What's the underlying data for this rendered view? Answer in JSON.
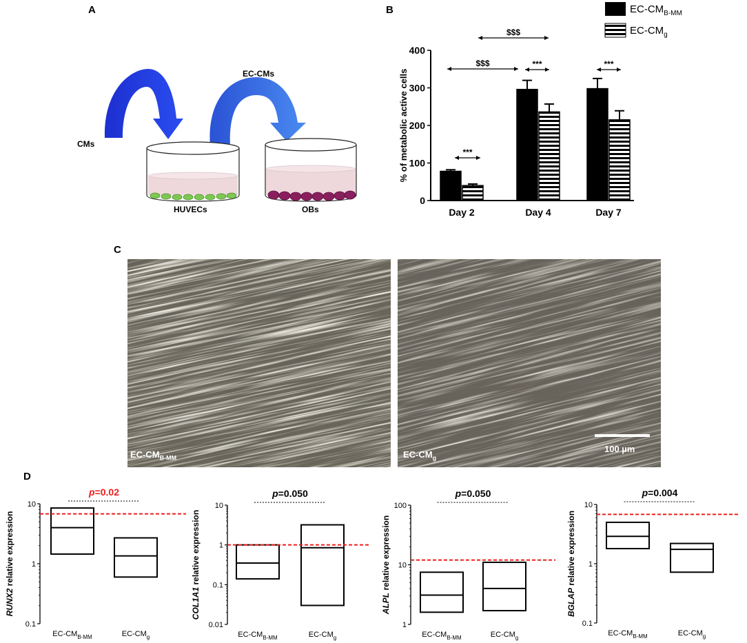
{
  "panel_labels": {
    "a": "A",
    "b": "B",
    "c": "C",
    "d": "D"
  },
  "panel_a": {
    "cms_label": "CMs",
    "ec_cms_label": "EC-CMs",
    "huvecs_label": "HUVECs",
    "obs_label": "OBs",
    "colors": {
      "arrow_dark": "#1a2fd6",
      "arrow_light": "#3b6fe8",
      "huvec_cells": "#7dc852",
      "ob_cells": "#8a1f5e",
      "medium": "#efd8dc"
    }
  },
  "panel_c": {
    "left_tag": "EC-CM",
    "left_tag_sub": "B-MM",
    "right_tag": "EC-CM",
    "right_tag_sub": "g",
    "scale_bar_label": "100 µm",
    "colors": {
      "micrograph_base": "#6b665a"
    }
  },
  "chart_data": [
    {
      "id": "B",
      "type": "bar",
      "ylabel": "% of metabolic active cells",
      "ylim": [
        0,
        400
      ],
      "yticks": [
        0,
        100,
        200,
        300,
        400
      ],
      "categories": [
        "Day 2",
        "Day 4",
        "Day 7"
      ],
      "legend_position": "top-right",
      "series": [
        {
          "name": "EC-CM",
          "name_sub": "B-MM",
          "fill": "solid-black",
          "values": [
            78,
            296,
            298
          ],
          "errors": [
            4,
            24,
            27
          ]
        },
        {
          "name": "EC-CM",
          "name_sub": "g",
          "fill": "horizontal-stripes",
          "values": [
            40,
            236,
            215
          ],
          "errors": [
            4,
            21,
            24
          ]
        }
      ],
      "annotations": [
        {
          "text": "***",
          "between": [
            "Day 2 EC-CMB-MM",
            "Day 2 EC-CMg"
          ]
        },
        {
          "text": "***",
          "between": [
            "Day 4 EC-CMB-MM",
            "Day 4 EC-CMg"
          ]
        },
        {
          "text": "***",
          "between": [
            "Day 7 EC-CMB-MM",
            "Day 7 EC-CMg"
          ]
        },
        {
          "text": "$$$",
          "between": [
            "Day 2",
            "Day 4"
          ]
        },
        {
          "text": "$$$",
          "between": [
            "Day 2",
            "Day 4 EC-CMg"
          ]
        }
      ]
    },
    {
      "id": "D1",
      "type": "box",
      "ylabel_gene": "RUNX2",
      "ylabel_suffix": " relative expression",
      "yscale": "log",
      "ylim": [
        0.1,
        10
      ],
      "yticks": [
        0.1,
        1,
        10
      ],
      "ytick_labels": [
        "0.1",
        "1",
        "10"
      ],
      "categories": [
        "EC-CM",
        "EC-CM"
      ],
      "category_subs": [
        "B-MM",
        "g"
      ],
      "boxes": [
        {
          "min": 1.45,
          "median": 4.0,
          "max": 8.5
        },
        {
          "min": 0.6,
          "median": 1.35,
          "max": 2.7
        }
      ],
      "reference_line": 6.8,
      "p_prefix": "p",
      "p_value": "=0.02",
      "p_color": "#ee1c1c"
    },
    {
      "id": "D2",
      "type": "box",
      "ylabel_gene": "COL1A1",
      "ylabel_suffix": " relative expression",
      "yscale": "log",
      "ylim": [
        0.01,
        10
      ],
      "yticks": [
        0.01,
        0.1,
        1,
        10
      ],
      "ytick_labels": [
        "0.01",
        "0.1",
        "1",
        "10"
      ],
      "categories": [
        "EC-CM",
        "EC-CM"
      ],
      "category_subs": [
        "B-MM",
        "g"
      ],
      "boxes": [
        {
          "min": 0.14,
          "median": 0.35,
          "max": 1.0
        },
        {
          "min": 0.03,
          "median": 0.85,
          "max": 3.2
        }
      ],
      "reference_line": 1.0,
      "p_prefix": "p",
      "p_value": "=0.050",
      "p_color": "#000000"
    },
    {
      "id": "D3",
      "type": "box",
      "ylabel_gene": "ALPL",
      "ylabel_suffix": " relative expression",
      "yscale": "log",
      "ylim": [
        1,
        100
      ],
      "yticks": [
        1,
        10,
        100
      ],
      "ytick_labels": [
        "1",
        "10",
        "100"
      ],
      "categories": [
        "EC-CM",
        "EC-CM"
      ],
      "category_subs": [
        "B-MM",
        "g"
      ],
      "boxes": [
        {
          "min": 1.6,
          "median": 3.1,
          "max": 7.5
        },
        {
          "min": 1.7,
          "median": 4.0,
          "max": 11.0
        }
      ],
      "reference_line": 12.0,
      "p_prefix": "p",
      "p_value": "=0.050",
      "p_color": "#000000"
    },
    {
      "id": "D4",
      "type": "box",
      "ylabel_gene": "BGLAP",
      "ylabel_suffix": " relative expression",
      "yscale": "log",
      "ylim": [
        0.1,
        10
      ],
      "yticks": [
        0.1,
        1,
        10
      ],
      "ytick_labels": [
        "0.1",
        "1",
        "10"
      ],
      "categories": [
        "EC-CM",
        "EC-CM"
      ],
      "category_subs": [
        "B-MM",
        "g"
      ],
      "boxes": [
        {
          "min": 1.8,
          "median": 2.9,
          "max": 5.0
        },
        {
          "min": 0.72,
          "median": 1.75,
          "max": 2.2
        }
      ],
      "reference_line": 6.8,
      "p_prefix": "p",
      "p_value": "=0.004",
      "p_color": "#000000"
    }
  ]
}
